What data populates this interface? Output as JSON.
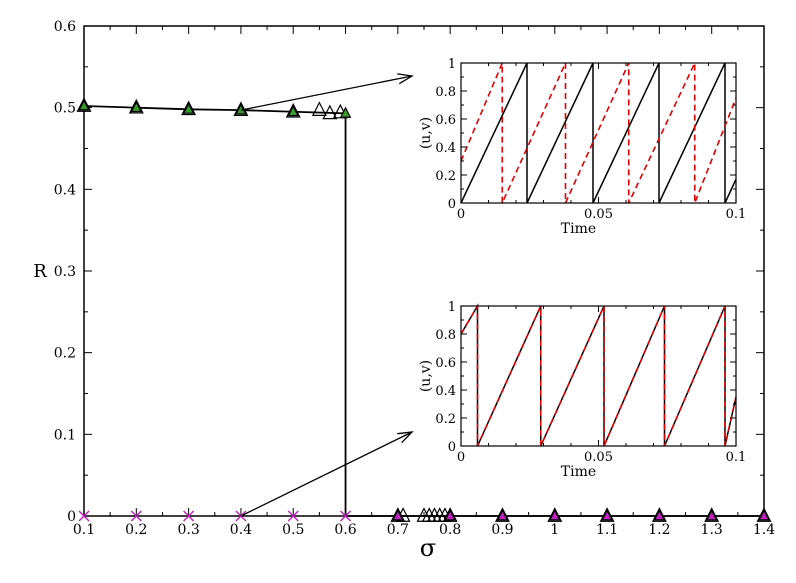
{
  "chart_data": [
    {
      "type": "scatter",
      "title": "",
      "xlabel": "σ",
      "ylabel": "R",
      "xlim": [
        0.1,
        1.4
      ],
      "ylim": [
        0,
        0.6
      ],
      "xticks": [
        "0.1",
        "0.2",
        "0.3",
        "0.4",
        "0.5",
        "0.6",
        "0.7",
        "0.8",
        "0.9",
        "1",
        "1.1",
        "1.2",
        "1.3",
        "1.4"
      ],
      "yticks": [
        "0",
        "0.1",
        "0.2",
        "0.3",
        "0.4",
        "0.5",
        "0.6"
      ],
      "grid": false,
      "colors": {
        "line": "#000000",
        "green": "#3a9a2e",
        "magenta": "#c020c0",
        "triangle_outline": "#000000"
      },
      "series": [
        {
          "marker": "line",
          "x": [
            0.1,
            0.2,
            0.3,
            0.4,
            0.5,
            0.6,
            0.6,
            0.8,
            0.9,
            1.0,
            1.1,
            1.2,
            1.3,
            1.4
          ],
          "y": [
            0.502,
            0.5,
            0.498,
            0.497,
            0.495,
            0.493,
            0.0,
            0.0,
            0.0,
            0.0,
            0.0,
            0.0,
            0.0,
            0.0
          ]
        },
        {
          "marker": "open-triangle",
          "x": [
            0.1,
            0.2,
            0.3,
            0.4,
            0.5,
            0.55,
            0.57,
            0.59,
            0.7,
            0.71,
            0.75,
            0.76,
            0.77,
            0.78,
            0.79,
            0.8,
            0.9,
            1.0,
            1.1,
            1.2,
            1.3,
            1.4
          ],
          "y": [
            0.502,
            0.5,
            0.498,
            0.497,
            0.495,
            0.497,
            0.493,
            0.494,
            0.0,
            0.0,
            0.0,
            0.0,
            0.0,
            0.0,
            0.0,
            0.0,
            0.0,
            0.0,
            0.0,
            0.0,
            0.0,
            0.0
          ]
        },
        {
          "marker": "filled-triangle-green",
          "x": [
            0.1,
            0.2,
            0.3,
            0.4,
            0.5,
            0.6
          ],
          "y": [
            0.502,
            0.5,
            0.498,
            0.497,
            0.495,
            0.493
          ]
        },
        {
          "marker": "filled-triangle-magenta",
          "x": [
            0.7,
            0.8,
            0.9,
            1.0,
            1.1,
            1.2,
            1.3,
            1.4
          ],
          "y": [
            0,
            0,
            0,
            0,
            0,
            0,
            0,
            0
          ]
        },
        {
          "marker": "x-magenta",
          "x": [
            0.1,
            0.2,
            0.3,
            0.4,
            0.5,
            0.6
          ],
          "y": [
            0,
            0,
            0,
            0,
            0,
            0
          ]
        }
      ],
      "annotations": [
        {
          "type": "arrow",
          "from": [
            0.4,
            0.497
          ],
          "to_inset": 0
        },
        {
          "type": "arrow",
          "from": [
            0.4,
            0.0
          ],
          "to_inset": 1
        }
      ]
    },
    {
      "type": "line",
      "title": "",
      "xlabel": "Time",
      "ylabel": "(u,v)",
      "xlim": [
        0,
        0.1
      ],
      "ylim": [
        0,
        1
      ],
      "xticks": [
        "0",
        "0.05",
        "0.1"
      ],
      "yticks": [
        "0",
        "0.2",
        "0.4",
        "0.6",
        "0.8",
        "1"
      ],
      "series": [
        {
          "style": "solid",
          "color": "#000000",
          "x": [
            0,
            0.024,
            0.024,
            0.048,
            0.048,
            0.072,
            0.072,
            0.096,
            0.096,
            0.1
          ],
          "y": [
            0.0,
            1.0,
            0.0,
            1.0,
            0.0,
            1.0,
            0.0,
            1.0,
            0.0,
            0.17
          ]
        },
        {
          "style": "dashed",
          "color": "#e00000",
          "x": [
            0,
            0.015,
            0.015,
            0.038,
            0.038,
            0.061,
            0.061,
            0.085,
            0.085,
            0.1
          ],
          "y": [
            0.3,
            1.0,
            0.0,
            1.0,
            0.0,
            1.0,
            0.0,
            1.0,
            0.0,
            0.75
          ]
        }
      ]
    },
    {
      "type": "line",
      "title": "",
      "xlabel": "Time",
      "ylabel": "(u,v)",
      "xlim": [
        0,
        0.1
      ],
      "ylim": [
        0,
        1
      ],
      "xticks": [
        "0",
        "0.05",
        "0.1"
      ],
      "yticks": [
        "0",
        "0.2",
        "0.4",
        "0.6",
        "0.8",
        "1"
      ],
      "series": [
        {
          "style": "solid",
          "color": "#000000",
          "x": [
            0,
            0.006,
            0.006,
            0.029,
            0.029,
            0.052,
            0.052,
            0.074,
            0.074,
            0.096,
            0.096,
            0.1
          ],
          "y": [
            0.8,
            1.0,
            0.0,
            1.0,
            0.0,
            1.0,
            0.0,
            1.0,
            0.0,
            1.0,
            0.0,
            0.35
          ]
        },
        {
          "style": "dashed",
          "color": "#e00000",
          "x": [
            0,
            0.006,
            0.006,
            0.029,
            0.029,
            0.052,
            0.052,
            0.074,
            0.074,
            0.096,
            0.096,
            0.1
          ],
          "y": [
            0.8,
            1.0,
            0.0,
            1.0,
            0.0,
            1.0,
            0.0,
            1.0,
            0.0,
            1.0,
            0.0,
            0.35
          ]
        }
      ]
    }
  ]
}
